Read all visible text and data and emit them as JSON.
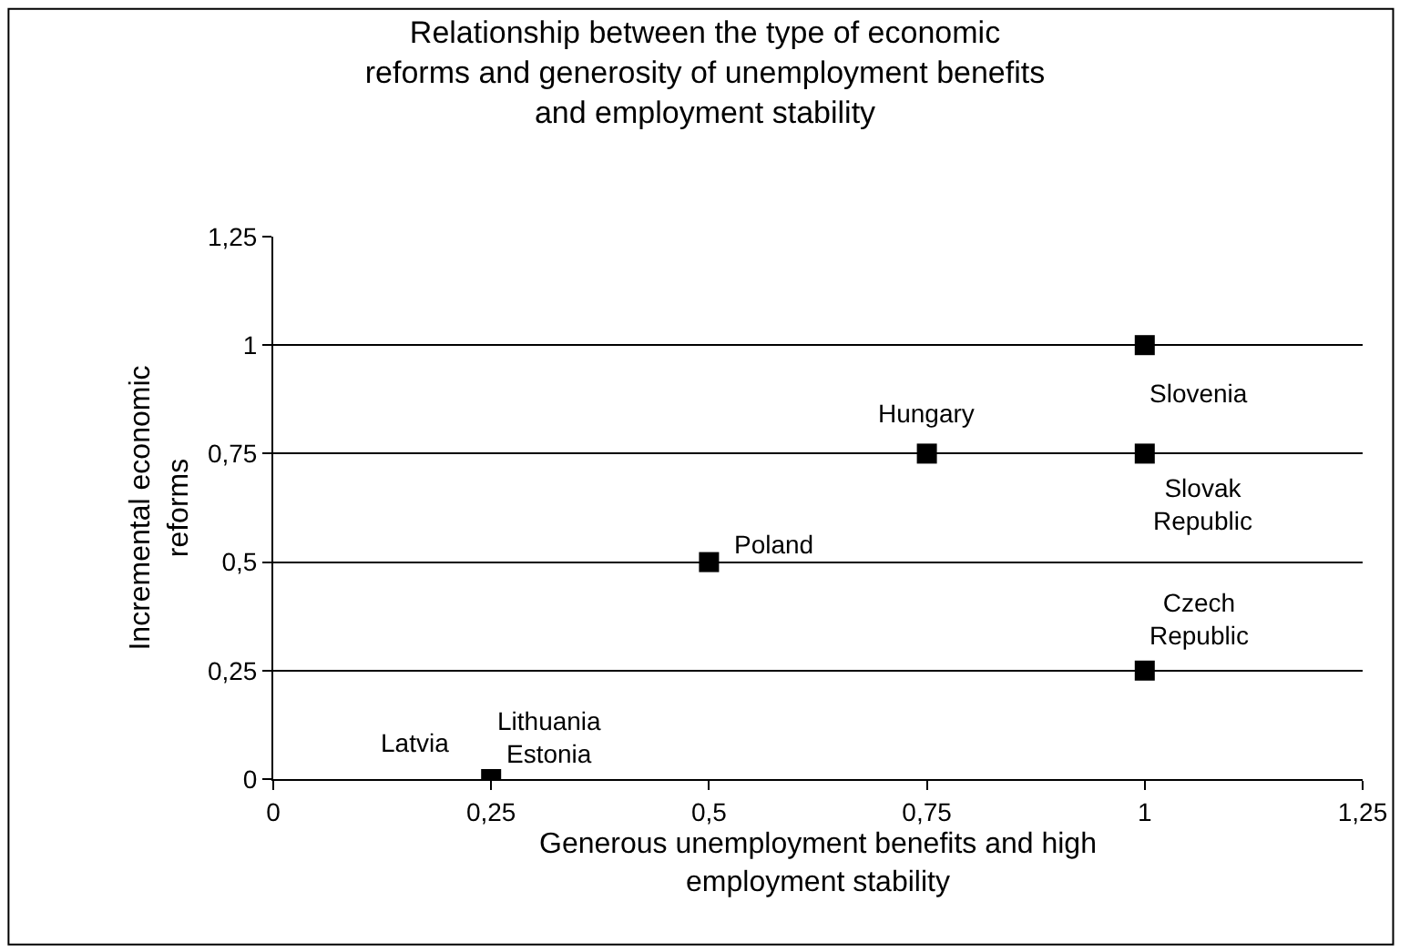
{
  "chart_data": {
    "type": "scatter",
    "title": "Relationship between the type of economic\nreforms and generosity of unemployment benefits\nand employment stability",
    "xlabel": "Generous unemployment benefits and high\nemployment stability",
    "ylabel": "Incremental economic\nreforms",
    "series": [
      {
        "color": "#000000",
        "x": [
          0.25,
          0.5,
          0.75,
          1,
          1,
          1
        ],
        "values": [
          0,
          0.5,
          0.75,
          1,
          0.75,
          0.25
        ]
      }
    ],
    "marker": "square",
    "grid": "y",
    "xlim": [
      0,
      1.25
    ],
    "ylim": [
      0,
      1.25
    ],
    "xticks": [
      0,
      {
        "value": 0.25,
        "label": "0,25"
      },
      {
        "value": 0.5,
        "label": "0,5"
      },
      {
        "value": 0.75,
        "label": "0,75"
      },
      1,
      {
        "value": 1.25,
        "label": "1,25"
      }
    ],
    "yticks": [
      0,
      {
        "value": 0.25,
        "label": "0,25"
      },
      {
        "value": 0.5,
        "label": "0,5"
      },
      {
        "value": 0.75,
        "label": "0,75"
      },
      1,
      {
        "value": 1.25,
        "label": "1,25"
      }
    ],
    "annotations": [
      {
        "text": "Latvia",
        "x": 0.25,
        "y": 0
      },
      {
        "text": "Lithuania",
        "x": 0.25,
        "y": 0
      },
      {
        "text": "Estonia",
        "x": 0.25,
        "y": 0
      },
      {
        "text": "Poland",
        "x": 0.5,
        "y": 0.5
      },
      {
        "text": "Hungary",
        "x": 0.75,
        "y": 0.75
      },
      {
        "text": "Slovenia",
        "x": 1,
        "y": 1
      },
      {
        "text": "Slovak\nRepublic",
        "x": 1,
        "y": 0.75
      },
      {
        "text": "Czech\nRepublic",
        "x": 1,
        "y": 0.25
      }
    ]
  }
}
